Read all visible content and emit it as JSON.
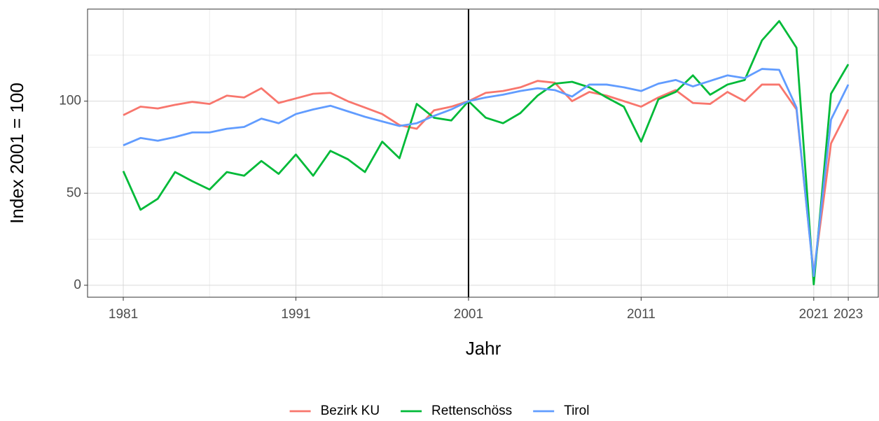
{
  "chart_data": {
    "type": "line",
    "x_label": "Jahr",
    "y_label": "Index 2001 = 100",
    "x": [
      1981,
      1982,
      1983,
      1984,
      1985,
      1986,
      1987,
      1988,
      1989,
      1990,
      1991,
      1992,
      1993,
      1994,
      1995,
      1996,
      1997,
      1998,
      1999,
      2000,
      2001,
      2002,
      2003,
      2004,
      2005,
      2006,
      2007,
      2008,
      2009,
      2010,
      2011,
      2012,
      2013,
      2014,
      2015,
      2016,
      2017,
      2018,
      2019,
      2020,
      2021,
      2022,
      2023
    ],
    "series": [
      {
        "name": "Bezirk KU",
        "color": "#f8766d",
        "values": [
          92.4,
          97,
          96,
          98,
          99.6,
          98.5,
          103,
          102,
          107,
          99,
          101.5,
          104,
          104.5,
          100,
          96.5,
          93,
          87,
          85,
          95,
          97,
          100,
          104.5,
          105.5,
          107.5,
          111,
          110,
          100,
          105,
          103,
          100,
          97,
          102,
          106,
          99,
          98.5,
          105,
          100,
          109,
          109,
          95.5,
          6,
          77,
          95.5
        ]
      },
      {
        "name": "Rettenschöss",
        "color": "#00ba38",
        "values": [
          62,
          41,
          47,
          61.5,
          56.5,
          52,
          61.5,
          59.5,
          67.5,
          60.5,
          71,
          59.5,
          73,
          68.5,
          61.5,
          78,
          69,
          98.5,
          91,
          89.5,
          100,
          91,
          88,
          93.5,
          103,
          109.5,
          110.5,
          107.5,
          102,
          97,
          78,
          101,
          105,
          114,
          103.5,
          109,
          111.5,
          133,
          143.5,
          129,
          0.5,
          104,
          120
        ]
      },
      {
        "name": "Tirol",
        "color": "#619cff",
        "values": [
          76,
          80,
          78.5,
          80.5,
          83,
          83,
          85,
          86,
          90.5,
          88,
          93,
          95.5,
          97.5,
          94.5,
          91.5,
          89,
          86.5,
          88,
          92,
          95.5,
          100,
          102,
          103.5,
          105.5,
          107,
          106,
          102.5,
          109,
          109,
          107.5,
          105.5,
          109.5,
          111.5,
          108,
          111,
          114,
          112.5,
          117.5,
          117,
          96.5,
          5,
          90,
          109
        ]
      }
    ],
    "xlim": [
      1978.93,
      2024.74
    ],
    "xticks": [
      1981,
      1991,
      2001,
      2011,
      2021,
      2023
    ],
    "ylim": [
      -6.5,
      150
    ],
    "yticks": [
      0,
      50,
      100
    ],
    "vline": 2001,
    "grid": true,
    "legend": "bottom"
  }
}
